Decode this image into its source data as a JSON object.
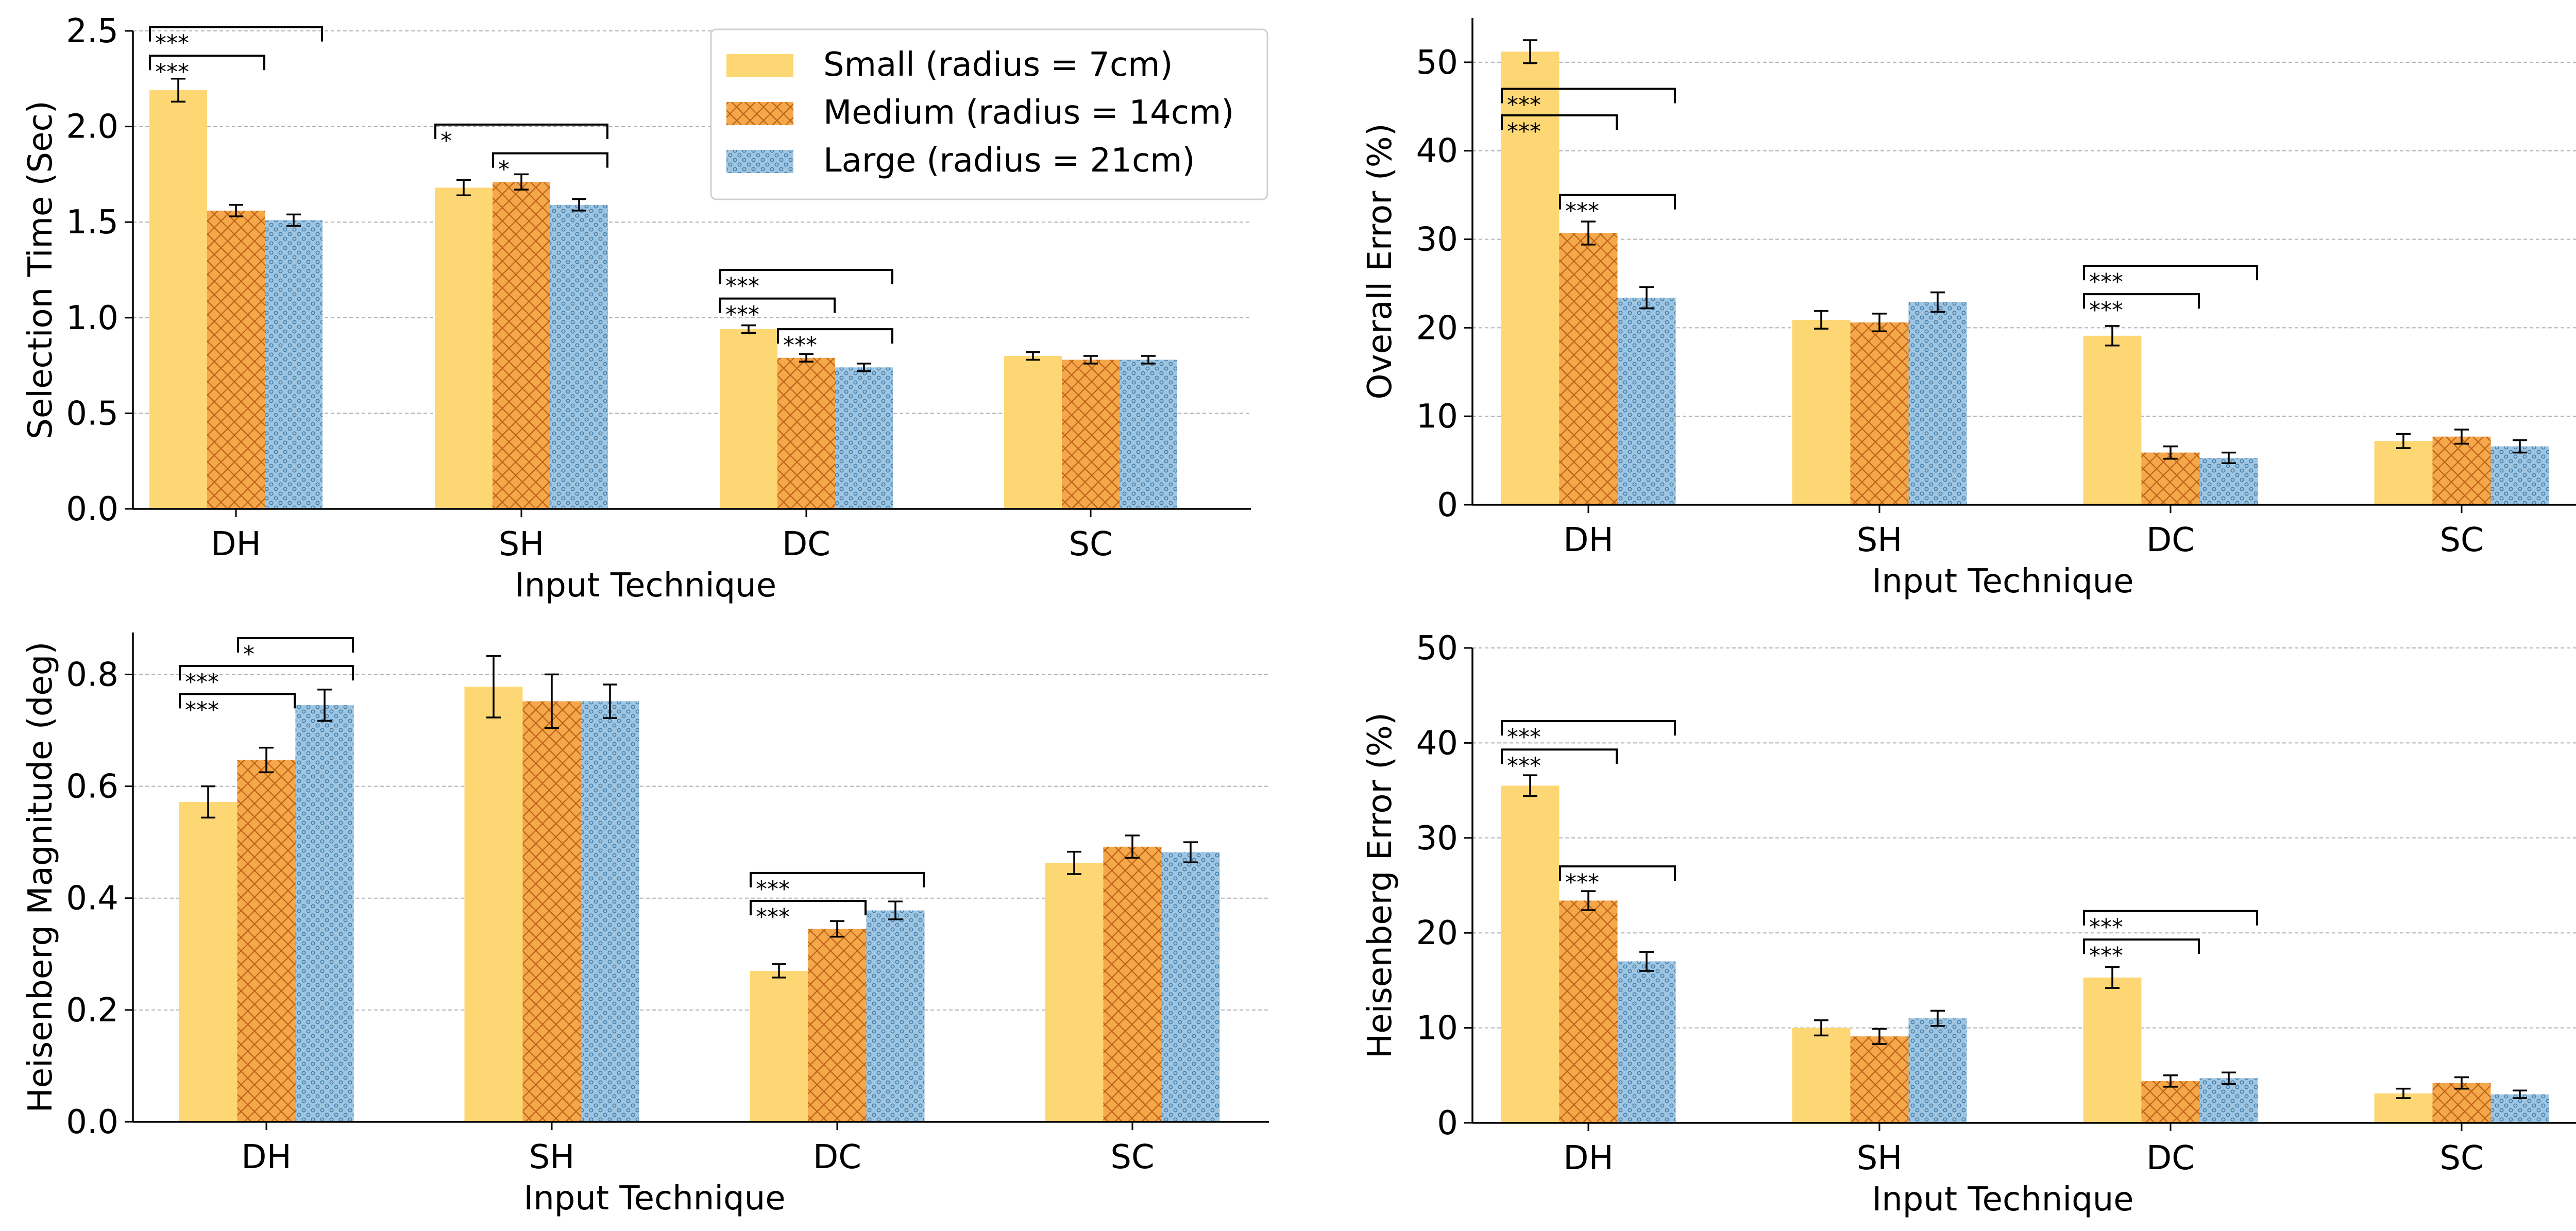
{
  "colors": {
    "small": "#FDD774",
    "medium": "#F4A84A",
    "medium_hatch": "#C0611A",
    "large": "#9FC5E0",
    "large_dots": "#3F7FAF",
    "grid": "#b0b0b0",
    "axis": "#000000"
  },
  "legend": [
    "Small (radius = 7cm)",
    "Medium (radius = 14cm)",
    "Large (radius = 21cm)"
  ],
  "chart_data": [
    {
      "type": "bar",
      "title": "",
      "xlabel": "Input Technique",
      "ylabel": "Selection Time (Sec)",
      "categories": [
        "DH",
        "SH",
        "DC",
        "SC"
      ],
      "ylim": [
        0,
        2.5
      ],
      "yticks": [
        "0.0",
        "0.5",
        "1.0",
        "1.5",
        "2.0",
        "2.5"
      ],
      "grid": "y",
      "legend_position": "top-right",
      "series": [
        {
          "name": "Small (radius = 7cm)",
          "values": [
            2.19,
            1.68,
            0.94,
            0.8
          ],
          "errors": [
            0.06,
            0.04,
            0.02,
            0.02
          ]
        },
        {
          "name": "Medium (radius = 14cm)",
          "values": [
            1.56,
            1.71,
            0.79,
            0.78
          ],
          "errors": [
            0.03,
            0.04,
            0.02,
            0.02
          ]
        },
        {
          "name": "Large (radius = 21cm)",
          "values": [
            1.51,
            1.59,
            0.74,
            0.78
          ],
          "errors": [
            0.03,
            0.03,
            0.02,
            0.02
          ]
        }
      ],
      "significance": [
        {
          "cat": 0,
          "from": 0,
          "to": 1,
          "y": 2.37,
          "label": "***"
        },
        {
          "cat": 0,
          "from": 0,
          "to": 2,
          "y": 2.52,
          "label": "***"
        },
        {
          "cat": 1,
          "from": 1,
          "to": 2,
          "y": 1.86,
          "label": "*"
        },
        {
          "cat": 1,
          "from": 0,
          "to": 2,
          "y": 2.01,
          "label": "*"
        },
        {
          "cat": 2,
          "from": 1,
          "to": 2,
          "y": 0.94,
          "label": "***"
        },
        {
          "cat": 2,
          "from": 0,
          "to": 1,
          "y": 1.1,
          "label": "***"
        },
        {
          "cat": 2,
          "from": 0,
          "to": 2,
          "y": 1.25,
          "label": "***"
        }
      ]
    },
    {
      "type": "bar",
      "title": "",
      "xlabel": "Input Technique",
      "ylabel": "Overall Error (%)",
      "categories": [
        "DH",
        "SH",
        "DC",
        "SC"
      ],
      "ylim": [
        0,
        55
      ],
      "yticks": [
        "0",
        "10",
        "20",
        "30",
        "40",
        "50"
      ],
      "grid": "y",
      "series": [
        {
          "name": "Small (radius = 7cm)",
          "values": [
            51.2,
            20.9,
            19.1,
            7.2
          ],
          "errors": [
            1.3,
            1.0,
            1.1,
            0.8
          ]
        },
        {
          "name": "Medium (radius = 14cm)",
          "values": [
            30.7,
            20.6,
            5.9,
            7.7
          ],
          "errors": [
            1.3,
            1.0,
            0.7,
            0.8
          ]
        },
        {
          "name": "Large (radius = 21cm)",
          "values": [
            23.4,
            22.9,
            5.3,
            6.6
          ],
          "errors": [
            1.2,
            1.1,
            0.6,
            0.7
          ]
        }
      ],
      "significance": [
        {
          "cat": 0,
          "from": 1,
          "to": 2,
          "y": 35.0,
          "label": "***"
        },
        {
          "cat": 0,
          "from": 0,
          "to": 1,
          "y": 44.0,
          "label": "***"
        },
        {
          "cat": 0,
          "from": 0,
          "to": 2,
          "y": 47.0,
          "label": "***"
        },
        {
          "cat": 2,
          "from": 0,
          "to": 1,
          "y": 23.8,
          "label": "***"
        },
        {
          "cat": 2,
          "from": 0,
          "to": 2,
          "y": 27.0,
          "label": "***"
        }
      ]
    },
    {
      "type": "bar",
      "title": "",
      "xlabel": "Input Technique",
      "ylabel": "Heisenberg Magnitude (deg)",
      "categories": [
        "DH",
        "SH",
        "DC",
        "SC"
      ],
      "ylim": [
        0,
        0.875
      ],
      "yticks": [
        "0.0",
        "0.2",
        "0.4",
        "0.6",
        "0.8"
      ],
      "grid": "y",
      "series": [
        {
          "name": "Small (radius = 7cm)",
          "values": [
            0.572,
            0.778,
            0.27,
            0.463
          ],
          "errors": [
            0.028,
            0.055,
            0.012,
            0.02
          ]
        },
        {
          "name": "Medium (radius = 14cm)",
          "values": [
            0.647,
            0.752,
            0.345,
            0.492
          ],
          "errors": [
            0.022,
            0.048,
            0.014,
            0.02
          ]
        },
        {
          "name": "Large (radius = 21cm)",
          "values": [
            0.745,
            0.752,
            0.378,
            0.482
          ],
          "errors": [
            0.028,
            0.03,
            0.016,
            0.018
          ]
        }
      ],
      "significance": [
        {
          "cat": 0,
          "from": 0,
          "to": 1,
          "y": 0.765,
          "label": "***"
        },
        {
          "cat": 0,
          "from": 0,
          "to": 2,
          "y": 0.815,
          "label": "***"
        },
        {
          "cat": 0,
          "from": 1,
          "to": 2,
          "y": 0.865,
          "label": "*"
        },
        {
          "cat": 2,
          "from": 0,
          "to": 1,
          "y": 0.395,
          "label": "***"
        },
        {
          "cat": 2,
          "from": 0,
          "to": 2,
          "y": 0.445,
          "label": "***"
        }
      ]
    },
    {
      "type": "bar",
      "title": "",
      "xlabel": "Input Technique",
      "ylabel": "Heisenberg Error (%)",
      "categories": [
        "DH",
        "SH",
        "DC",
        "SC"
      ],
      "ylim": [
        0,
        50
      ],
      "yticks": [
        "0",
        "10",
        "20",
        "30",
        "40",
        "50"
      ],
      "grid": "y",
      "series": [
        {
          "name": "Small (radius = 7cm)",
          "values": [
            35.5,
            10.0,
            15.3,
            3.1
          ],
          "errors": [
            1.1,
            0.8,
            1.1,
            0.5
          ]
        },
        {
          "name": "Medium (radius = 14cm)",
          "values": [
            23.4,
            9.1,
            4.4,
            4.2
          ],
          "errors": [
            1.0,
            0.8,
            0.6,
            0.6
          ]
        },
        {
          "name": "Large (radius = 21cm)",
          "values": [
            17.0,
            11.0,
            4.7,
            3.0
          ],
          "errors": [
            1.0,
            0.8,
            0.6,
            0.4
          ]
        }
      ],
      "significance": [
        {
          "cat": 0,
          "from": 1,
          "to": 2,
          "y": 27.0,
          "label": "***"
        },
        {
          "cat": 0,
          "from": 0,
          "to": 1,
          "y": 39.3,
          "label": "***"
        },
        {
          "cat": 0,
          "from": 0,
          "to": 2,
          "y": 42.3,
          "label": "***"
        },
        {
          "cat": 2,
          "from": 0,
          "to": 1,
          "y": 19.3,
          "label": "***"
        },
        {
          "cat": 2,
          "from": 0,
          "to": 2,
          "y": 22.3,
          "label": "***"
        }
      ]
    }
  ]
}
